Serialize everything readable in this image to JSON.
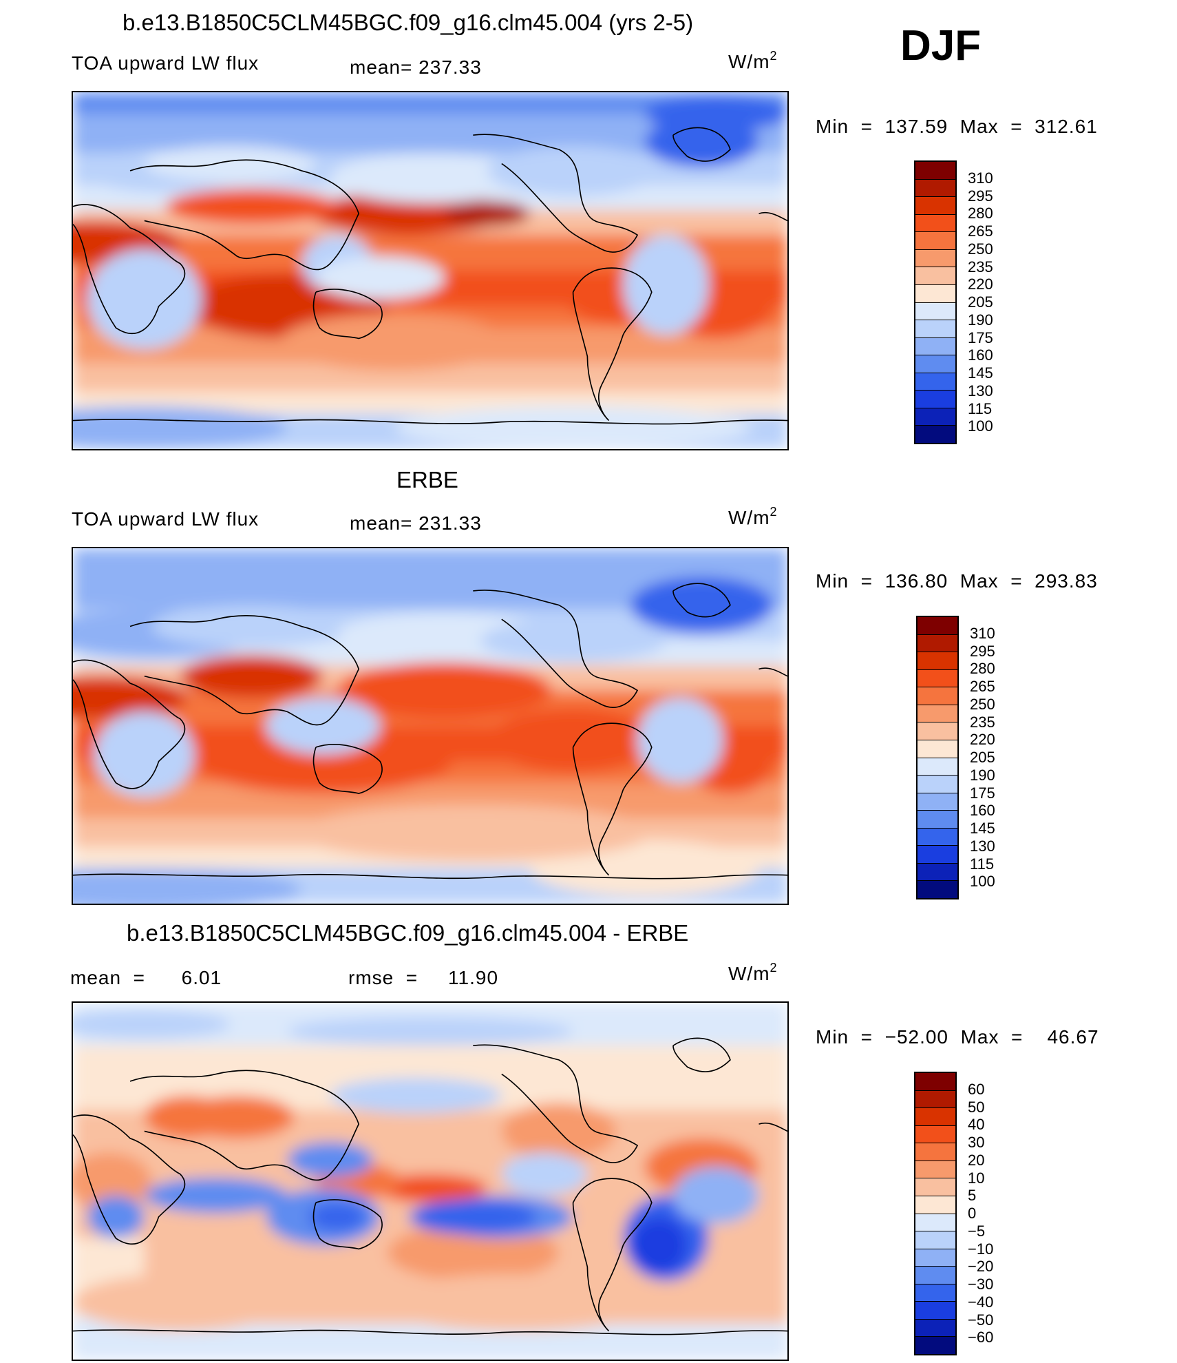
{
  "djf": "DJF",
  "panels": [
    {
      "title": "b.e13.B1850C5CLM45BGC.f09_g16.clm45.004 (yrs 2-5)",
      "left_label": "TOA upward LW flux",
      "mid_label": "mean= 237.33",
      "unit": "W/m",
      "unit_sup": "2",
      "minmax": "Min  =  137.59  Max  =  312.61",
      "levels": [
        "310",
        "295",
        "280",
        "265",
        "250",
        "235",
        "220",
        "205",
        "190",
        "175",
        "160",
        "145",
        "130",
        "115",
        "100"
      ],
      "map_kind": "model"
    },
    {
      "title": "ERBE",
      "left_label": "TOA upward LW flux",
      "mid_label": "mean= 231.33",
      "unit": "W/m",
      "unit_sup": "2",
      "minmax": "Min  =  136.80  Max  =  293.83",
      "levels": [
        "310",
        "295",
        "280",
        "265",
        "250",
        "235",
        "220",
        "205",
        "190",
        "175",
        "160",
        "145",
        "130",
        "115",
        "100"
      ],
      "map_kind": "obs"
    },
    {
      "title": "b.e13.B1850C5CLM45BGC.f09_g16.clm45.004 - ERBE",
      "left_label": "mean  =      6.01",
      "mid_label": "rmse  =     11.90",
      "unit": "W/m",
      "unit_sup": "2",
      "minmax": "Min  =  −52.00  Max  =    46.67",
      "levels": [
        "60",
        "50",
        "40",
        "30",
        "20",
        "10",
        "5",
        "0",
        "−5",
        "−10",
        "−20",
        "−30",
        "−40",
        "−50",
        "−60"
      ],
      "map_kind": "diff"
    }
  ],
  "colors": {
    "palette": [
      "#7e0000",
      "#b01a00",
      "#d93300",
      "#f2501a",
      "#f5743e",
      "#f79a6c",
      "#f9c0a0",
      "#fde7d4",
      "#dce9fb",
      "#bad2fa",
      "#8fb1f5",
      "#5f8cf0",
      "#3464ec",
      "#1a3ee0",
      "#0c22b8",
      "#020b7e"
    ]
  }
}
